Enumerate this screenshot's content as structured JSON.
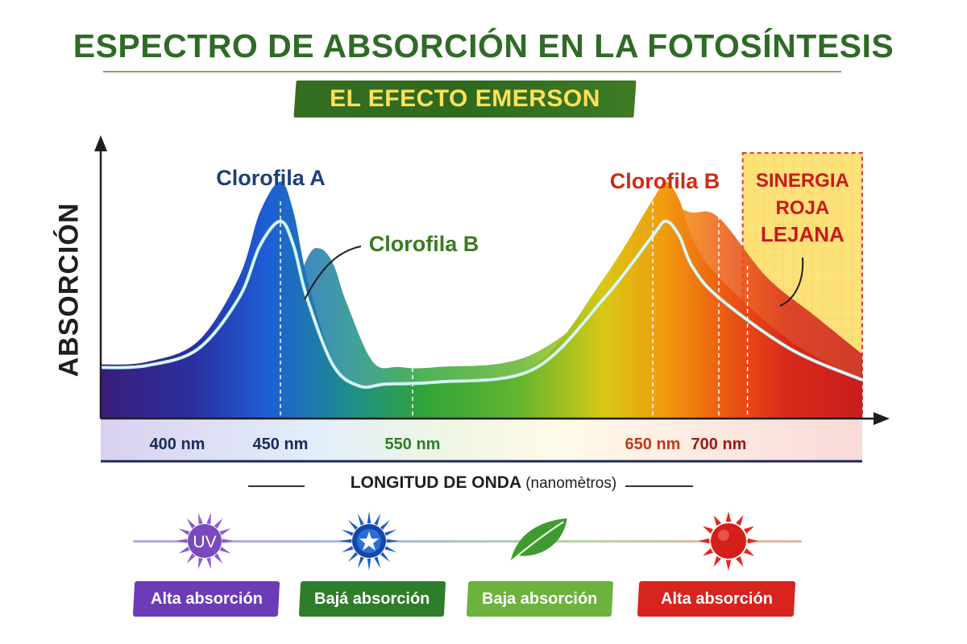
{
  "title": "ESPECTRO DE ABSORCIÓN EN LA FOTOSÍNTESIS",
  "subtitle": "EL EFECTO EMERSON",
  "chart_data": {
    "type": "area",
    "ylabel": "ABSORCIÓN",
    "xlabel": "LONGITUD DE ONDA",
    "xlabel_unit": "(nanomètros)",
    "x_ticks": [
      "400 nm",
      "450 nm",
      "550 nm",
      "650 nm",
      "700 nm"
    ],
    "x_tick_values": [
      400,
      450,
      550,
      650,
      700
    ],
    "xlim": [
      350,
      760
    ],
    "ylim": [
      0,
      1
    ],
    "grid": false,
    "series": [
      {
        "name": "Clorofila A",
        "color": "#1f6fd0",
        "x": [
          350,
          380,
          410,
          430,
          440,
          450,
          460,
          470,
          490,
          510,
          530,
          560,
          600,
          630,
          650,
          660,
          670,
          680,
          700,
          730,
          760
        ],
        "values": [
          0.21,
          0.22,
          0.3,
          0.55,
          0.8,
          0.92,
          0.8,
          0.55,
          0.22,
          0.12,
          0.13,
          0.14,
          0.2,
          0.55,
          0.85,
          0.92,
          0.85,
          0.7,
          0.55,
          0.3,
          0.15
        ]
      },
      {
        "name": "Clorofila B",
        "color": "#3f9d2e",
        "x": [
          350,
          430,
          450,
          470,
          480,
          490,
          500,
          520,
          540,
          560,
          600,
          640,
          660,
          680,
          700,
          720,
          740,
          760
        ],
        "values": [
          0.05,
          0.1,
          0.35,
          0.62,
          0.66,
          0.6,
          0.45,
          0.22,
          0.2,
          0.2,
          0.25,
          0.55,
          0.8,
          0.8,
          0.78,
          0.55,
          0.4,
          0.25
        ]
      }
    ],
    "annotations": [
      {
        "text": "Clorofila A",
        "color": "#1e3f7a"
      },
      {
        "text": "Clorofila B",
        "color": "#3c7a22"
      },
      {
        "text": "Clorofila B",
        "color": "#cf2a17"
      }
    ],
    "highlight": {
      "text_lines": [
        "SINERGIA",
        "ROJA",
        "LEJANA"
      ],
      "color": "#c8191a",
      "fill": "#fde27a"
    }
  },
  "legend": [
    {
      "icon": "uv-sun-icon",
      "icon_text": "UV",
      "label": "Alta absorción",
      "color": "#6b3bb8"
    },
    {
      "icon": "blue-sun-icon",
      "label": "Bajá absorción",
      "color": "#2e7d2a"
    },
    {
      "icon": "leaf-icon",
      "label": "Baja absorción",
      "color": "#6bb33c"
    },
    {
      "icon": "red-sun-icon",
      "label": "Alta absorción",
      "color": "#d8231f"
    }
  ]
}
